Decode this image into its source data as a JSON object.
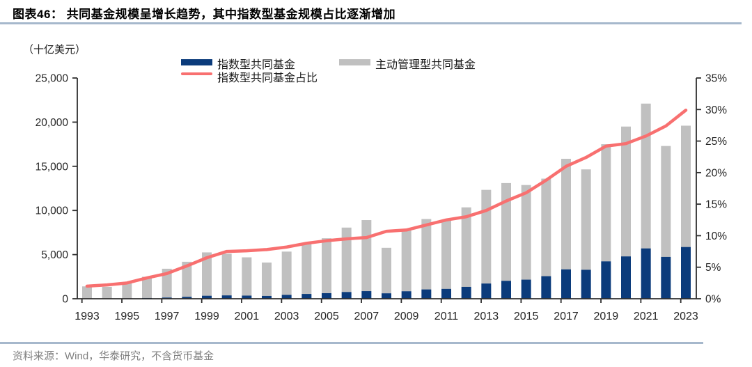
{
  "figure": {
    "title": "图表46：  共同基金规模呈增长趋势，其中指数型基金规模占比逐渐增加",
    "unit_label": "（十亿美元）",
    "source_note": "资料来源：Wind，华泰研究，不含货币基金"
  },
  "legend": {
    "index_fund": "指数型共同基金",
    "active_fund": "主动管理型共同基金",
    "index_share": "指数型共同基金占比"
  },
  "colors": {
    "index_bar": "#0b3b7b",
    "active_bar": "#c0c0c0",
    "share_line": "#f87070",
    "axis": "#2f2f2f",
    "tick_label": "#262626",
    "title_underline": "#a6b8cc",
    "source_text": "#7f7f7f"
  },
  "chart_data": {
    "type": "bar",
    "subtype": "stacked-bars-with-line-overlay",
    "title": "共同基金规模呈增长趋势，其中指数型基金规模占比逐渐增加",
    "unit": "十亿美元",
    "x": [
      1993,
      1994,
      1995,
      1996,
      1997,
      1998,
      1999,
      2000,
      2001,
      2002,
      2003,
      2004,
      2005,
      2006,
      2007,
      2008,
      2009,
      2010,
      2011,
      2012,
      2013,
      2014,
      2015,
      2016,
      2017,
      2018,
      2019,
      2020,
      2021,
      2022,
      2023
    ],
    "series": [
      {
        "name": "指数型共同基金",
        "type": "bar",
        "stack": true,
        "axis": "left",
        "color": "#0b3b7b",
        "values": [
          28,
          30,
          48,
          82,
          136,
          218,
          341,
          382,
          357,
          320,
          438,
          546,
          630,
          765,
          864,
          617,
          850,
          1056,
          1118,
          1346,
          1726,
          2031,
          2164,
          2557,
          3329,
          3282,
          4235,
          4797,
          5702,
          4740,
          5860
        ]
      },
      {
        "name": "主动管理型共同基金",
        "type": "bar",
        "stack": true,
        "axis": "left",
        "color": "#c0c0c0",
        "values": [
          1372,
          1320,
          1852,
          2408,
          3264,
          3972,
          4909,
          4718,
          4333,
          3780,
          4902,
          5654,
          6220,
          7295,
          8046,
          5153,
          6950,
          7974,
          7822,
          9004,
          10604,
          11069,
          10716,
          11043,
          12521,
          11368,
          13265,
          14703,
          16398,
          12560,
          13740
        ]
      },
      {
        "name": "指数型共同基金占比",
        "type": "line",
        "axis": "right",
        "color": "#f87070",
        "unit": "%",
        "values": [
          2.0,
          2.2,
          2.5,
          3.3,
          4.0,
          5.2,
          6.5,
          7.5,
          7.6,
          7.8,
          8.2,
          8.8,
          9.2,
          9.5,
          9.7,
          10.7,
          10.9,
          11.7,
          12.5,
          13.0,
          14.0,
          15.5,
          16.8,
          18.8,
          21.0,
          22.4,
          24.2,
          24.6,
          25.8,
          27.4,
          29.9
        ]
      }
    ],
    "left_axis": {
      "min": 0,
      "max": 25000,
      "tick_step": 5000,
      "tick_labels": [
        "0",
        "5,000",
        "10,000",
        "15,000",
        "20,000",
        "25,000"
      ]
    },
    "right_axis": {
      "min": 0,
      "max": 35,
      "tick_step": 5,
      "tick_labels": [
        "0%",
        "5%",
        "10%",
        "15%",
        "20%",
        "25%",
        "30%",
        "35%"
      ]
    },
    "x_axis": {
      "tick_labels": [
        "1993",
        "1995",
        "1997",
        "1999",
        "2001",
        "2003",
        "2005",
        "2007",
        "2009",
        "2011",
        "2013",
        "2015",
        "2017",
        "2019",
        "2021",
        "2023"
      ]
    },
    "grid": false,
    "legend_position": "top-center"
  }
}
